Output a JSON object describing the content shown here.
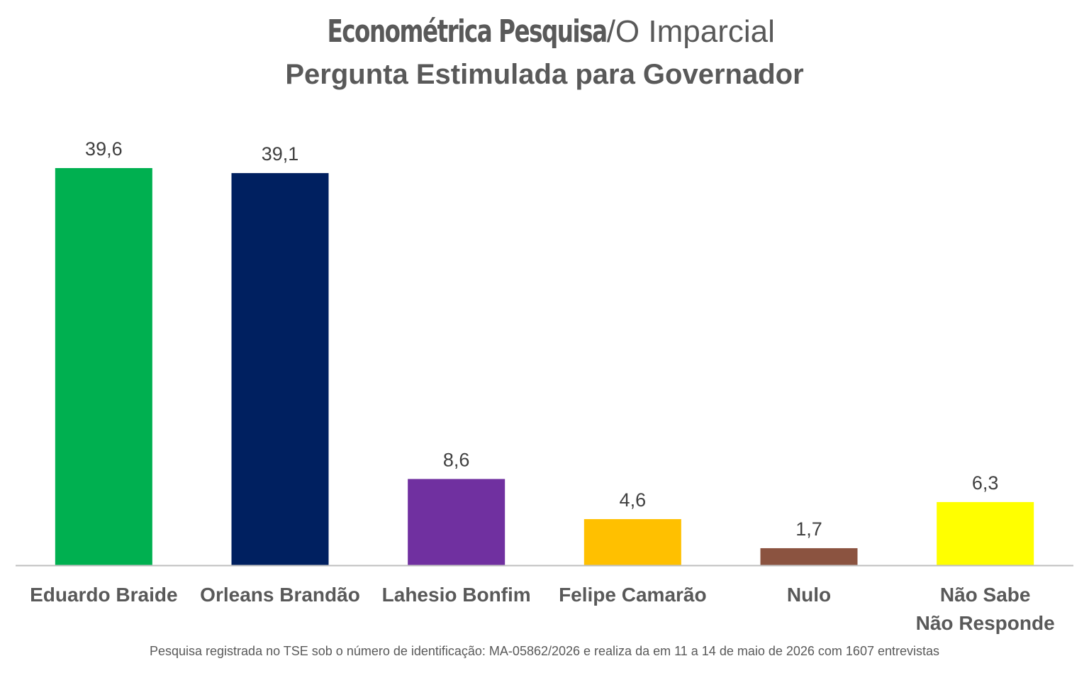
{
  "header": {
    "title_bold": "Econométrica Pesquisa",
    "title_rest": "/O Imparcial",
    "subtitle": "Pergunta Estimulada para Governador"
  },
  "chart_data": {
    "type": "bar",
    "title": "Econométrica Pesquisa/O Imparcial",
    "subtitle": "Pergunta Estimulada para Governador",
    "categories": [
      [
        "Eduardo Braide"
      ],
      [
        "Orleans Brandão"
      ],
      [
        "Lahesio Bonfim"
      ],
      [
        "Felipe Camarão"
      ],
      [
        "Nulo"
      ],
      [
        "Não Sabe",
        "Não Responde"
      ]
    ],
    "values": [
      39.6,
      39.1,
      8.6,
      4.6,
      1.7,
      6.3
    ],
    "value_labels": [
      "39,6",
      "39,1",
      "8,6",
      "4,6",
      "1,7",
      "6,3"
    ],
    "colors": [
      "#00B050",
      "#002060",
      "#7030A0",
      "#FFC000",
      "#8B5340",
      "#FFFF00"
    ],
    "ylim": [
      0,
      40
    ],
    "grid": false,
    "legend": "none",
    "axis_color": "#BFBFBF"
  },
  "footnote": "Pesquisa registrada no TSE sob o número de identificação: MA-05862/2026 e realiza da em 11 a 14 de maio de 2026 com 1607 entrevistas"
}
